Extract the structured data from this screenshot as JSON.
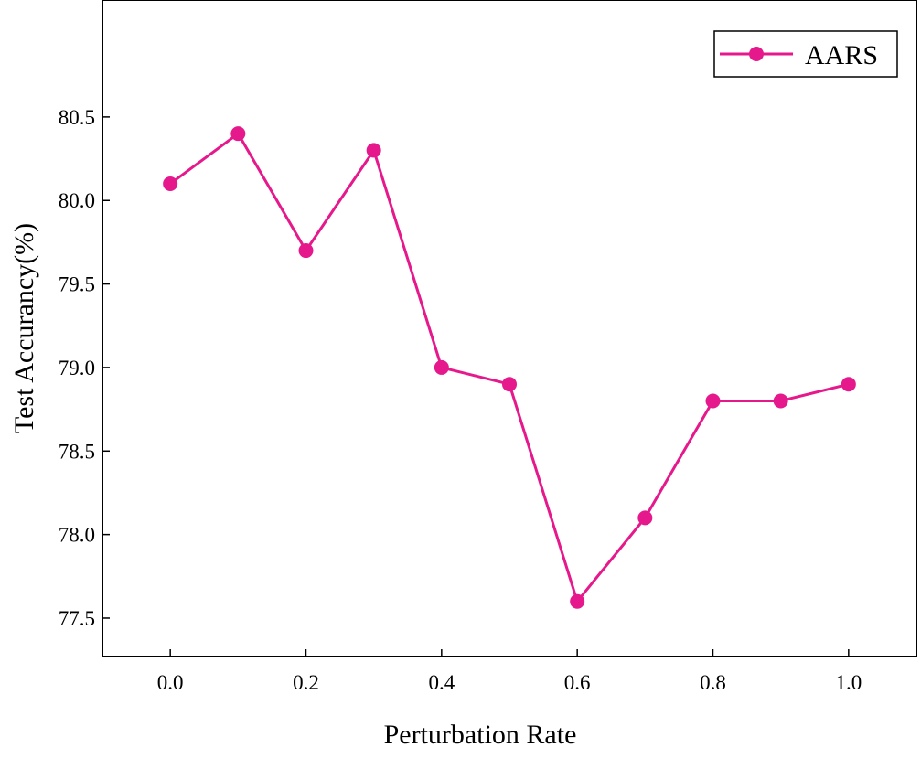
{
  "chart_data": {
    "type": "line",
    "title": "",
    "xlabel": "Perturbation Rate",
    "ylabel": "Test Accurancy(%)",
    "x": [
      0.0,
      0.1,
      0.2,
      0.3,
      0.4,
      0.5,
      0.6,
      0.7,
      0.8,
      0.9,
      1.0
    ],
    "series": [
      {
        "name": "AARS",
        "color": "#e6198c",
        "values": [
          80.1,
          80.4,
          79.7,
          80.3,
          79.0,
          78.9,
          77.6,
          78.1,
          78.8,
          78.8,
          78.9
        ]
      }
    ],
    "xlim": [
      -0.1,
      1.1
    ],
    "ylim": [
      77.27,
      81.2
    ],
    "xticks": [
      0.0,
      0.2,
      0.4,
      0.6,
      0.8,
      1.0
    ],
    "xtick_labels": [
      "0.0",
      "0.2",
      "0.4",
      "0.6",
      "0.8",
      "1.0"
    ],
    "yticks": [
      77.5,
      78.0,
      78.5,
      79.0,
      79.5,
      80.0,
      80.5
    ],
    "ytick_labels": [
      "77.5",
      "78.0",
      "78.5",
      "79.0",
      "79.5",
      "80.0",
      "80.5"
    ],
    "grid": false,
    "legend_position": "top-right"
  }
}
